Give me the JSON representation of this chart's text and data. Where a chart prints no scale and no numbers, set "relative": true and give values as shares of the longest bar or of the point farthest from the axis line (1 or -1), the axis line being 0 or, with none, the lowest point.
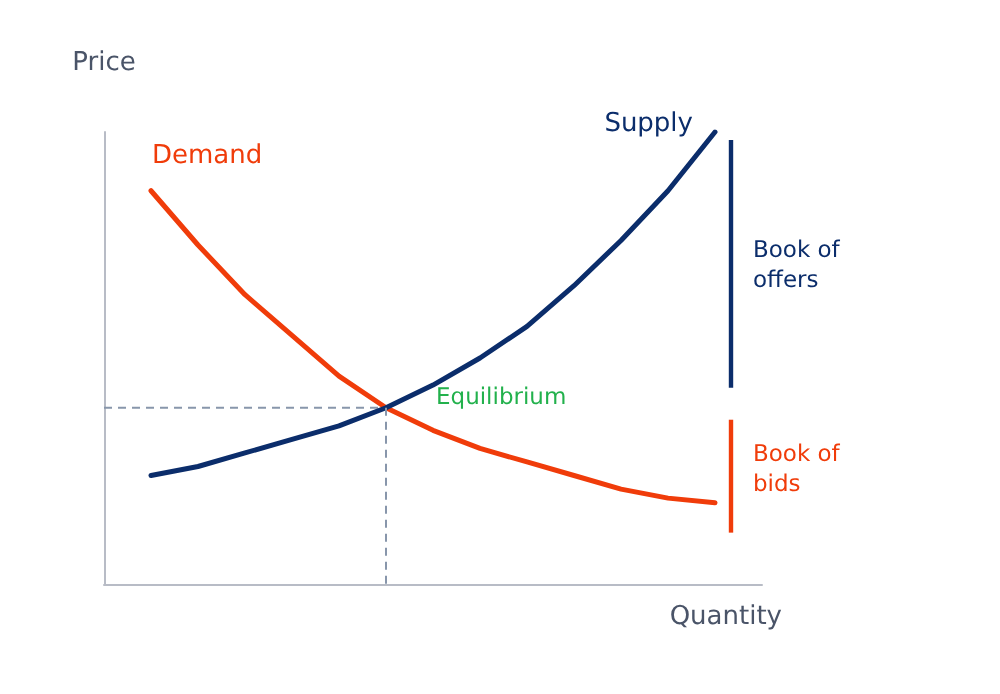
{
  "chart_data": {
    "type": "line",
    "relative": true,
    "xlabel": "Quantity",
    "ylabel": "Price",
    "grid": false,
    "legend": false,
    "marker": "none",
    "line_style": "solid",
    "categories": [
      null,
      null,
      null,
      null,
      null,
      null,
      null,
      null,
      null,
      null,
      null,
      null,
      null,
      null,
      null
    ],
    "series": [
      {
        "name": "Demand",
        "color": "#f03c0a",
        "values": [
          null,
          0.87,
          0.75,
          0.64,
          0.55,
          0.46,
          0.39,
          0.34,
          0.3,
          0.27,
          0.24,
          0.21,
          0.19,
          0.18,
          null
        ]
      },
      {
        "name": "Supply",
        "color": "#0b2d6b",
        "values": [
          null,
          0.24,
          0.26,
          0.29,
          0.32,
          0.35,
          0.39,
          0.44,
          0.5,
          0.57,
          0.66,
          0.76,
          0.87,
          1,
          null
        ]
      }
    ],
    "ref_lines": [
      {
        "axis": "y",
        "value": 0.39,
        "color": "#8896ab",
        "line_style": "dashed"
      }
    ],
    "annotations": [
      "Equilibrium",
      "Book of offers",
      "Book of bids"
    ]
  }
}
